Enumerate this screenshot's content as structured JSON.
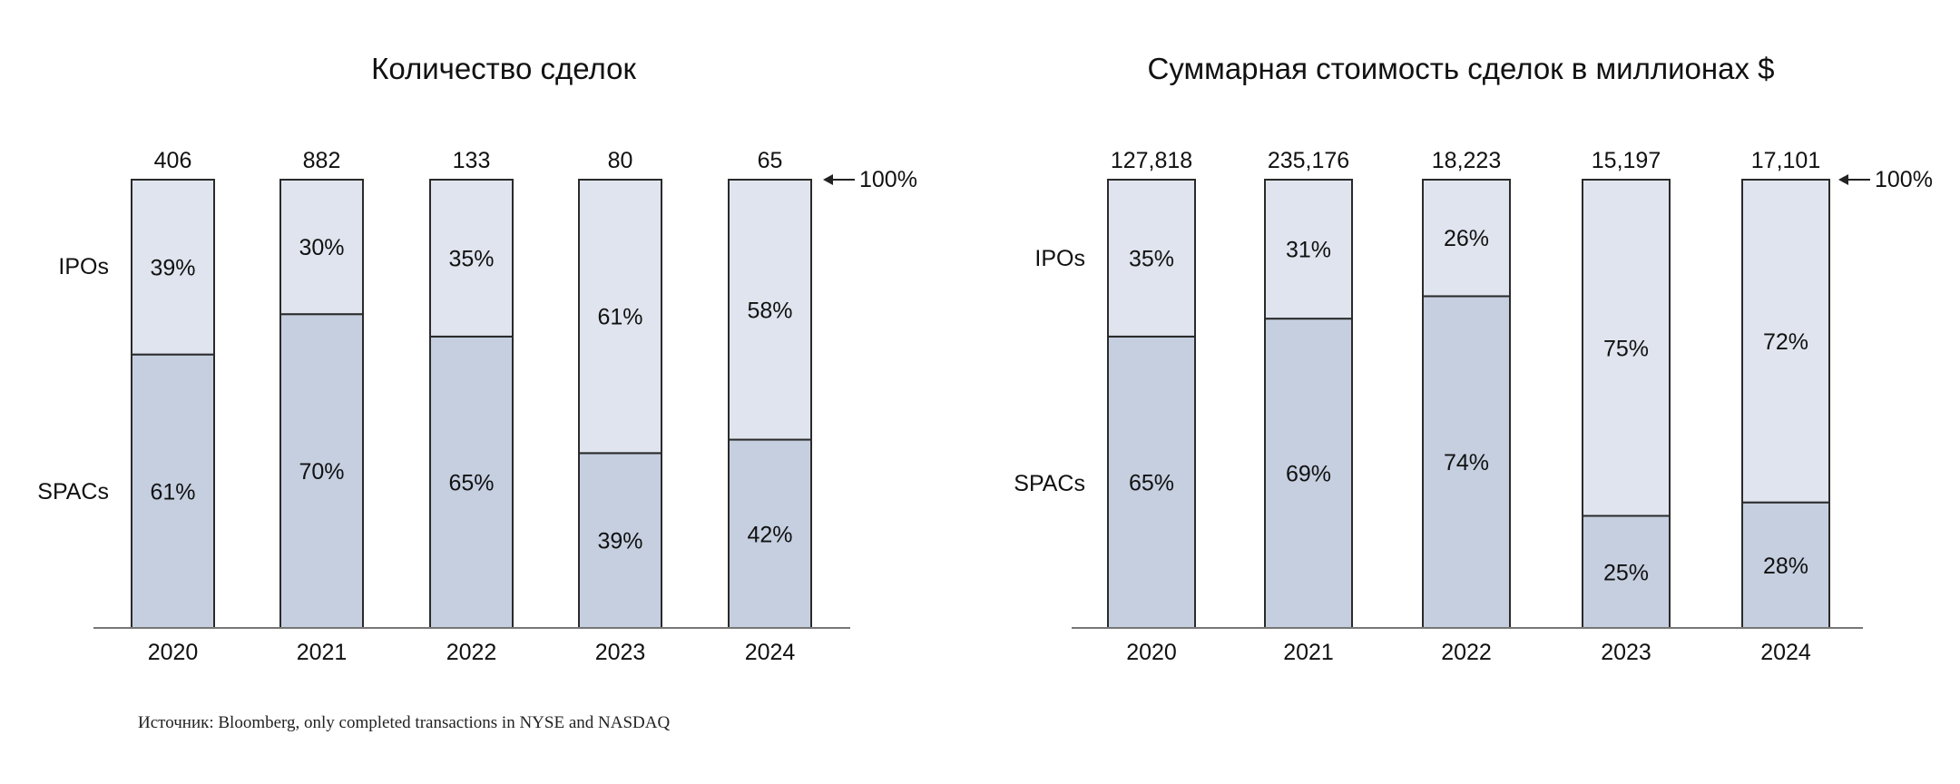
{
  "colors": {
    "ipo": "#dfe4ee",
    "spac": "#c5cfe0",
    "outline": "#2a2a2a",
    "axis": "#777777"
  },
  "source_note": "Источник: Bloomberg, only completed transactions in NYSE and NASDAQ",
  "chart_data": [
    {
      "type": "bar",
      "stacked": true,
      "normalized": true,
      "title": "Количество сделок",
      "categories": [
        "2020",
        "2021",
        "2022",
        "2023",
        "2024"
      ],
      "totals": [
        "406",
        "882",
        "133",
        "80",
        "65"
      ],
      "series": [
        {
          "name": "SPACs",
          "values": [
            61,
            70,
            65,
            39,
            42
          ],
          "labels": [
            "61%",
            "70%",
            "65%",
            "39%",
            "42%"
          ]
        },
        {
          "name": "IPOs",
          "values": [
            39,
            30,
            35,
            61,
            58
          ],
          "labels": [
            "39%",
            "30%",
            "35%",
            "61%",
            "58%"
          ]
        }
      ],
      "reference_label": "100%",
      "ylim": [
        0,
        100
      ]
    },
    {
      "type": "bar",
      "stacked": true,
      "normalized": true,
      "title": "Суммарная стоимость сделок в миллионах $",
      "categories": [
        "2020",
        "2021",
        "2022",
        "2023",
        "2024"
      ],
      "totals": [
        "127,818",
        "235,176",
        "18,223",
        "15,197",
        "17,101"
      ],
      "series": [
        {
          "name": "SPACs",
          "values": [
            65,
            69,
            74,
            25,
            28
          ],
          "labels": [
            "65%",
            "69%",
            "74%",
            "25%",
            "28%"
          ]
        },
        {
          "name": "IPOs",
          "values": [
            35,
            31,
            26,
            75,
            72
          ],
          "labels": [
            "35%",
            "31%",
            "26%",
            "75%",
            "72%"
          ]
        }
      ],
      "reference_label": "100%",
      "ylim": [
        0,
        100
      ]
    }
  ]
}
